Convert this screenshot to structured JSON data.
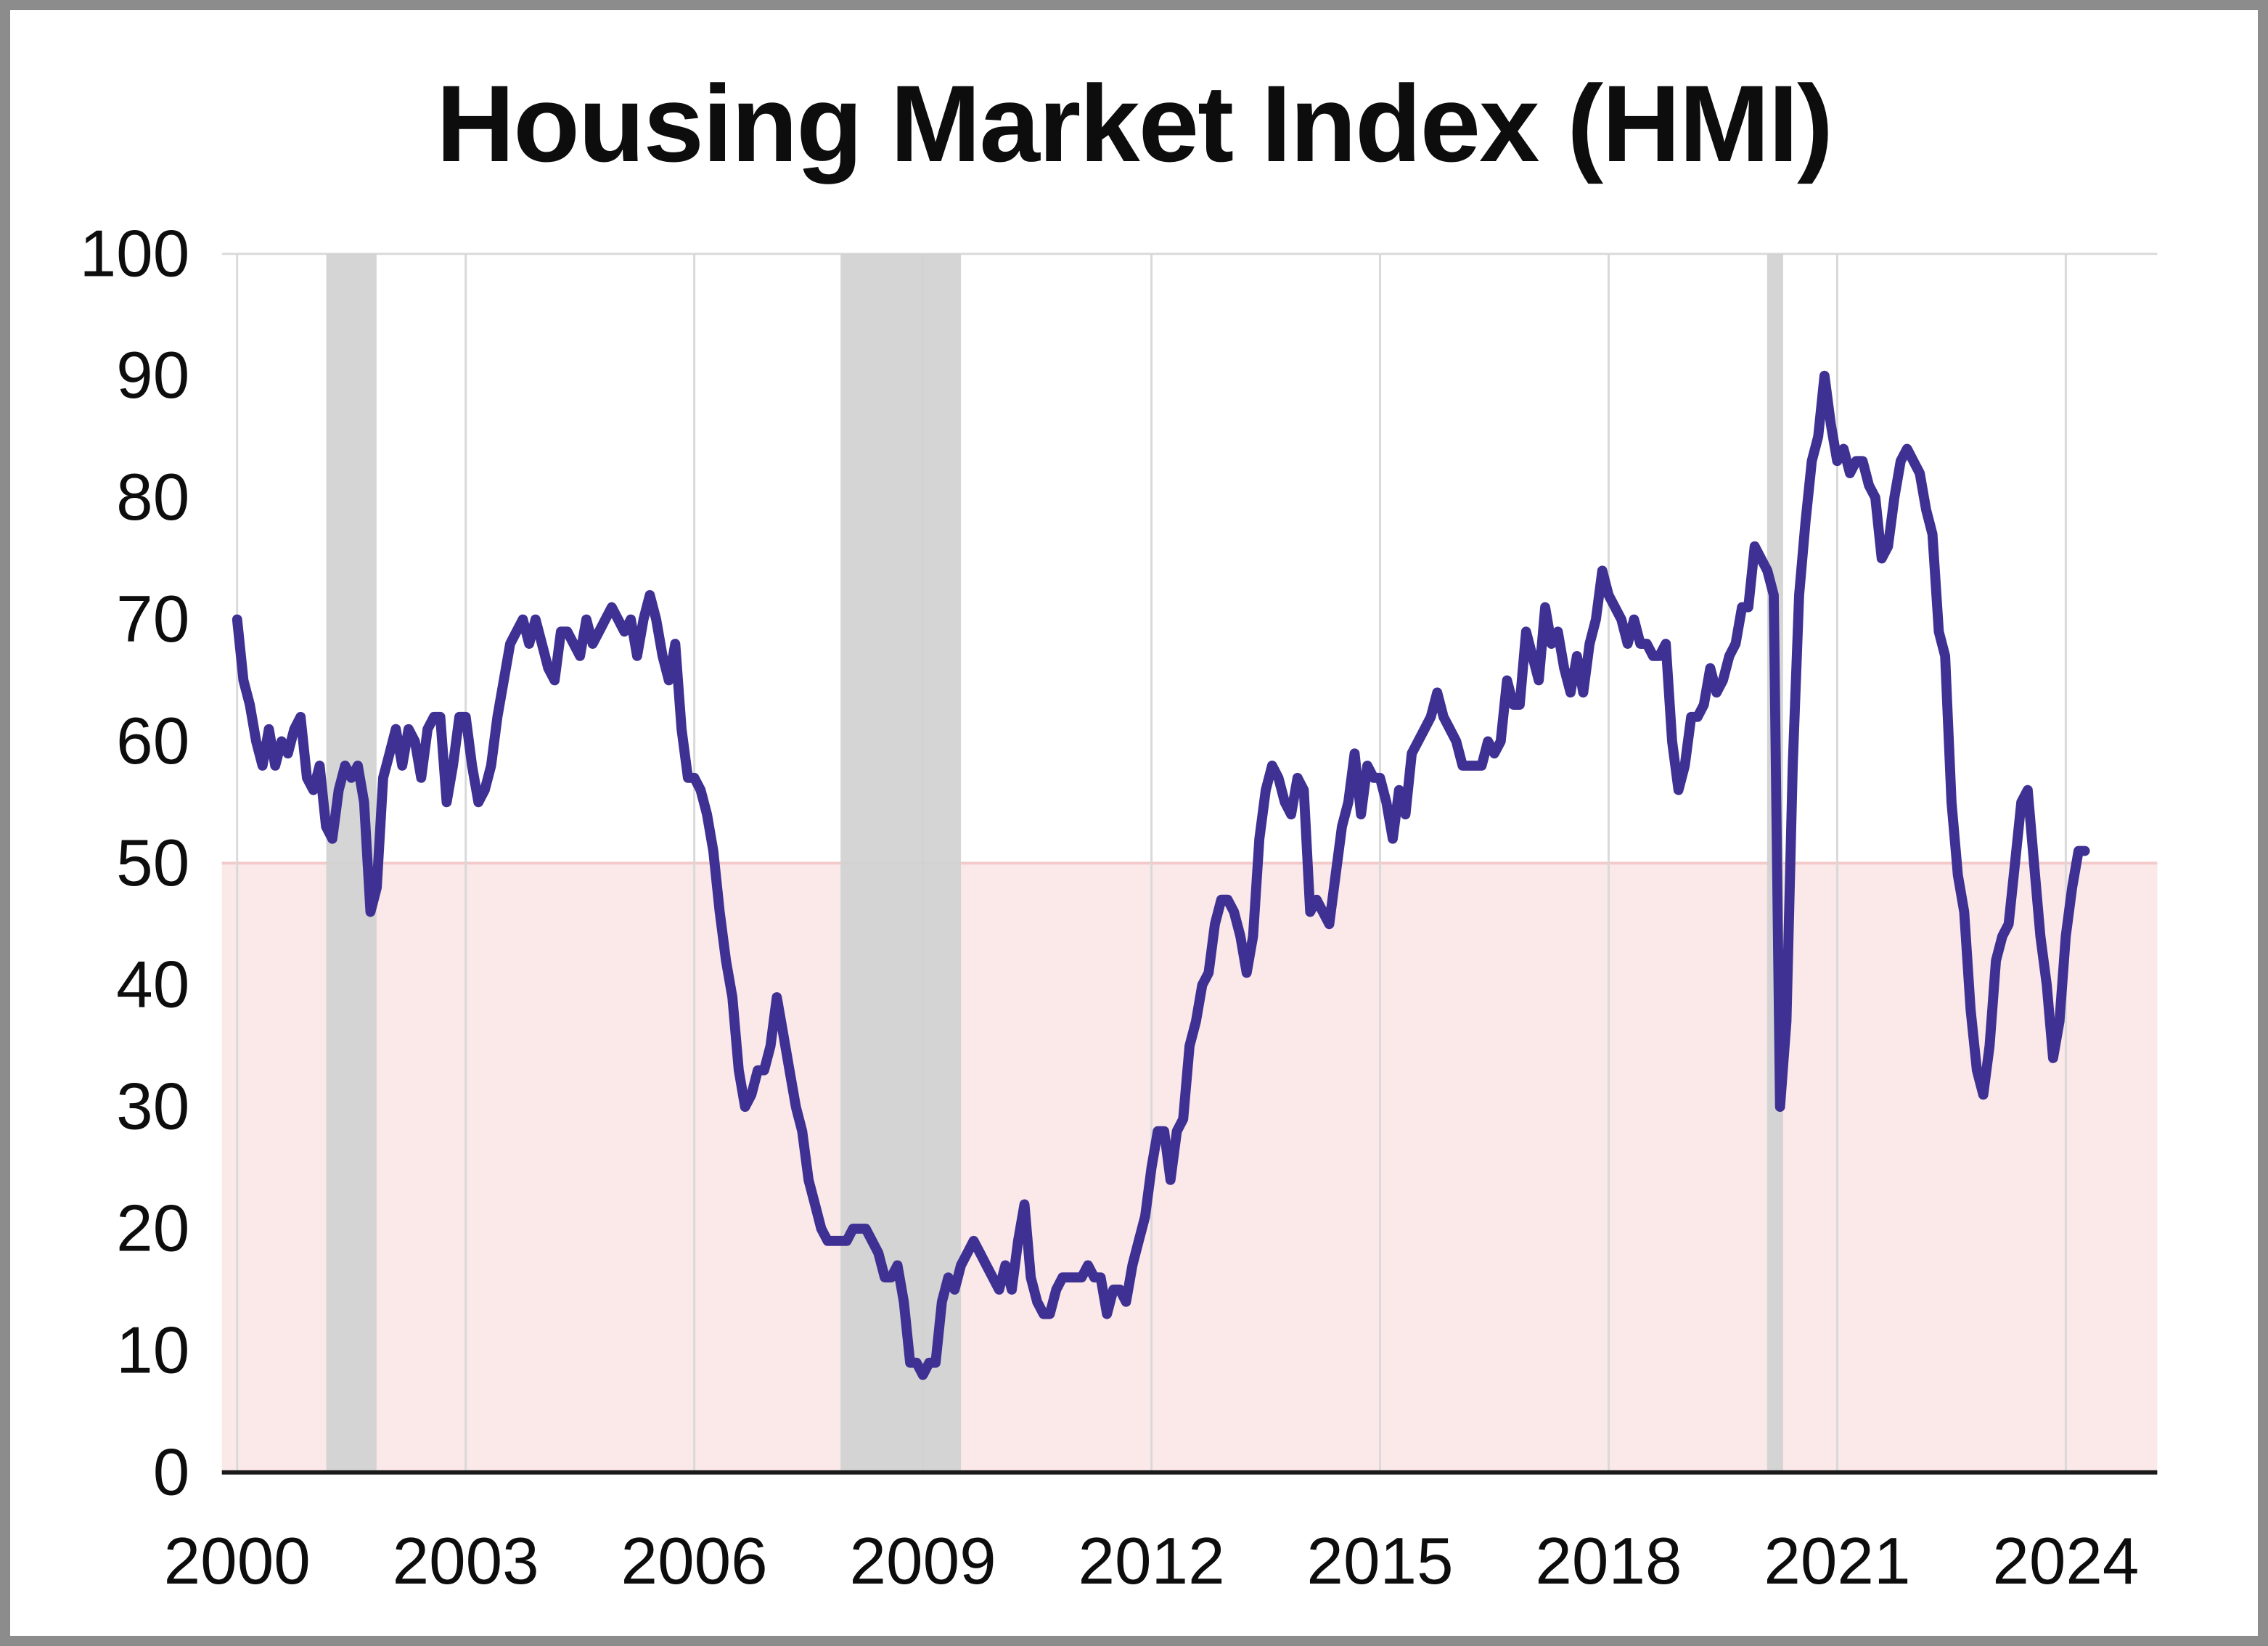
{
  "chart": {
    "title": "Housing Market Index (HMI)"
  },
  "chart_data": {
    "type": "line",
    "title": "Housing Market Index (HMI)",
    "frequency": "monthly",
    "x_start_year": 2000,
    "xlim": [
      1999.8,
      2025.2
    ],
    "ylim": [
      0,
      100
    ],
    "y_ticks": [
      0,
      10,
      20,
      30,
      40,
      50,
      60,
      70,
      80,
      90,
      100
    ],
    "x_ticks": [
      2000,
      2003,
      2006,
      2009,
      2012,
      2015,
      2018,
      2021,
      2024
    ],
    "x_tick_labels": [
      "2000",
      "2003",
      "2006",
      "2009",
      "2012",
      "2015",
      "2018",
      "2021",
      "2024"
    ],
    "grid": "vertical-only",
    "legend": "none",
    "shaded_below_value": 50,
    "recession_bands": [
      [
        2001.17,
        2001.83
      ],
      [
        2007.92,
        2009.5
      ],
      [
        2020.08,
        2020.29
      ]
    ],
    "series": [
      {
        "name": "HMI",
        "values": [
          70,
          65,
          63,
          60,
          58,
          61,
          58,
          60,
          59,
          61,
          62,
          57,
          56,
          58,
          53,
          52,
          56,
          58,
          57,
          58,
          55,
          46,
          48,
          57,
          59,
          61,
          58,
          61,
          60,
          57,
          61,
          62,
          62,
          55,
          58,
          62,
          62,
          58,
          55,
          56,
          58,
          62,
          65,
          68,
          69,
          70,
          68,
          70,
          68,
          66,
          65,
          69,
          69,
          68,
          67,
          70,
          68,
          69,
          70,
          71,
          70,
          69,
          70,
          67,
          70,
          72,
          70,
          67,
          65,
          68,
          61,
          57,
          57,
          56,
          54,
          51,
          46,
          42,
          39,
          33,
          30,
          31,
          33,
          33,
          35,
          39,
          36,
          33,
          30,
          28,
          24,
          22,
          20,
          19,
          19,
          19,
          19,
          20,
          20,
          20,
          19,
          18,
          16,
          16,
          17,
          14,
          9,
          9,
          8,
          9,
          9,
          14,
          16,
          15,
          17,
          18,
          19,
          18,
          17,
          16,
          15,
          17,
          15,
          19,
          22,
          16,
          14,
          13,
          13,
          15,
          16,
          16,
          16,
          16,
          17,
          16,
          16,
          13,
          15,
          15,
          14,
          17,
          19,
          21,
          25,
          28,
          28,
          24,
          28,
          29,
          35,
          37,
          40,
          41,
          45,
          47,
          47,
          46,
          44,
          41,
          44,
          52,
          56,
          58,
          57,
          55,
          54,
          57,
          56,
          46,
          47,
          46,
          45,
          49,
          53,
          55,
          59,
          54,
          58,
          57,
          57,
          55,
          52,
          56,
          54,
          59,
          60,
          61,
          62,
          64,
          62,
          61,
          60,
          58,
          58,
          58,
          58,
          60,
          59,
          60,
          65,
          63,
          63,
          69,
          67,
          65,
          71,
          68,
          69,
          66,
          64,
          67,
          64,
          68,
          70,
          74,
          72,
          71,
          70,
          68,
          70,
          68,
          68,
          67,
          67,
          68,
          60,
          56,
          58,
          62,
          62,
          63,
          66,
          64,
          65,
          67,
          68,
          71,
          71,
          76,
          75,
          74,
          72,
          30,
          37,
          58,
          72,
          78,
          83,
          85,
          90,
          86,
          83,
          84,
          82,
          83,
          83,
          81,
          80,
          75,
          76,
          80,
          83,
          84,
          83,
          82,
          79,
          77,
          69,
          67,
          55,
          49,
          46,
          38,
          33,
          31,
          35,
          42,
          44,
          45,
          50,
          55,
          56,
          50,
          44,
          40,
          34,
          37,
          44,
          48,
          51,
          51
        ]
      }
    ],
    "colors": {
      "line": "#3e3193",
      "below_threshold_fill": "#fbe8e8",
      "threshold_line": "#f3c9c9",
      "recession_fill": "#d1d1d1",
      "gridline": "#d9d9d9",
      "axis": "#1a1a1a",
      "text": "#0d0d0d",
      "frame_border": "#8c8c8c"
    }
  }
}
